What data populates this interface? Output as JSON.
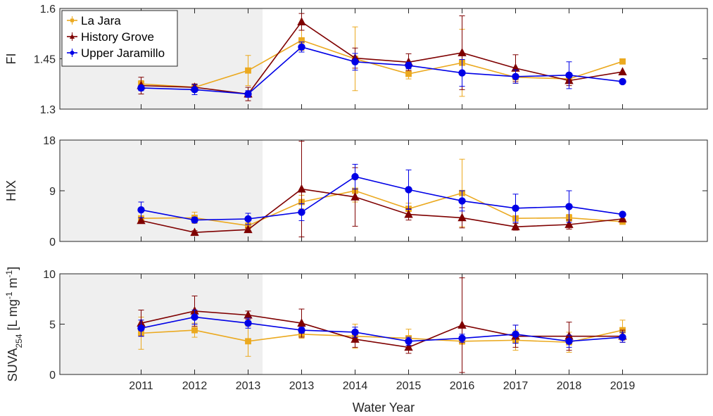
{
  "chart_data": {
    "type": "line",
    "xlabel": "Water Year",
    "categories": [
      "2011",
      "2012",
      "2013",
      "2013",
      "2014",
      "2015",
      "2016",
      "2017",
      "2018",
      "2019"
    ],
    "shaded_region_note": "first three categories shaded gray",
    "colors": {
      "la_jara": "#EBA91F",
      "history_grove": "#7F0000",
      "upper_jaramillo": "#0000E6",
      "shade": "#EFEFEF",
      "axis": "#262626",
      "grid": "#dcdcdc"
    },
    "legend": {
      "placement": "top-left of first panel",
      "entries": [
        "La Jara",
        "History Grove",
        "Upper Jaramillo"
      ]
    },
    "panels": [
      {
        "id": "fi",
        "ylabel": "FI",
        "ylim": [
          1.3,
          1.6
        ],
        "yticks": [
          1.3,
          1.45,
          1.6
        ],
        "ytick_labels": [
          "1.3",
          "1.45",
          "1.6"
        ],
        "series": [
          {
            "name": "La Jara",
            "marker": "square",
            "values": [
              1.375,
              1.365,
              1.415,
              1.505,
              1.45,
              1.405,
              1.438,
              1.395,
              1.39,
              1.442
            ],
            "err": [
              0.01,
              0.008,
              0.045,
              0.03,
              0.095,
              0.015,
              0.1,
              0.018,
              0.012,
              0
            ]
          },
          {
            "name": "History Grove",
            "marker": "triangle",
            "values": [
              1.37,
              1.365,
              1.345,
              1.56,
              1.452,
              1.44,
              1.468,
              1.422,
              1.385,
              1.411
            ],
            "err": [
              0.025,
              0.01,
              0.02,
              0.025,
              0.03,
              0.025,
              0.11,
              0.04,
              0.015,
              0
            ]
          },
          {
            "name": "Upper Jaramillo",
            "marker": "circle",
            "values": [
              1.363,
              1.358,
              1.345,
              1.485,
              1.441,
              1.43,
              1.408,
              1.397,
              1.401,
              1.382
            ],
            "err": [
              0.008,
              0.015,
              0.01,
              0.015,
              0.025,
              0.01,
              0.04,
              0.02,
              0.04,
              0
            ]
          }
        ]
      },
      {
        "id": "hix",
        "ylabel": "HIX",
        "ylim": [
          0,
          18
        ],
        "yticks": [
          0,
          9,
          18
        ],
        "ytick_labels": [
          "0",
          "9",
          "18"
        ],
        "series": [
          {
            "name": "La Jara",
            "marker": "square",
            "values": [
              4.1,
              4.2,
              2.8,
              7.0,
              9.0,
              5.8,
              8.6,
              4.1,
              4.2,
              3.5
            ],
            "err": [
              0.4,
              1.0,
              0.5,
              1.2,
              2.0,
              1.0,
              6.0,
              0.3,
              0.6,
              0
            ]
          },
          {
            "name": "History Grove",
            "marker": "triangle",
            "values": [
              3.7,
              1.6,
              2.1,
              9.3,
              7.9,
              4.8,
              4.2,
              2.6,
              3.0,
              4.0
            ],
            "err": [
              0.5,
              0.3,
              0.3,
              8.5,
              5.2,
              1.0,
              1.8,
              0.6,
              0.8,
              0
            ]
          },
          {
            "name": "Upper Jaramillo",
            "marker": "circle",
            "values": [
              5.6,
              3.8,
              4.0,
              5.2,
              11.5,
              9.2,
              7.2,
              5.9,
              6.2,
              4.8
            ],
            "err": [
              1.4,
              0.5,
              1.0,
              1.5,
              2.2,
              3.5,
              1.8,
              2.5,
              2.8,
              0
            ]
          }
        ]
      },
      {
        "id": "suva",
        "ylabel": "SUVA254 [L mg-1 m-1]",
        "ylabel_parts": {
          "main": "SUVA",
          "sub": "254",
          "unit_open": " [L mg",
          "sup1": "-1",
          "unit_mid": " m",
          "sup2": "-1",
          "unit_close": "]"
        },
        "ylim": [
          0,
          10
        ],
        "yticks": [
          0,
          5,
          10
        ],
        "ytick_labels": [
          "0",
          "5",
          "10"
        ],
        "series": [
          {
            "name": "La Jara",
            "marker": "square",
            "values": [
              4.1,
              4.4,
              3.3,
              4.0,
              3.8,
              3.6,
              3.3,
              3.4,
              3.2,
              4.4
            ],
            "err": [
              1.6,
              0.7,
              1.5,
              0.4,
              1.2,
              0.9,
              0.3,
              1.0,
              1.0,
              1.0
            ]
          },
          {
            "name": "History Grove",
            "marker": "triangle",
            "values": [
              5.1,
              6.3,
              5.9,
              5.1,
              3.5,
              2.7,
              4.9,
              3.8,
              3.8,
              3.8
            ],
            "err": [
              1.3,
              1.5,
              0.4,
              1.4,
              0.8,
              0.6,
              4.7,
              1.1,
              1.4,
              0.6
            ]
          },
          {
            "name": "Upper Jaramillo",
            "marker": "circle",
            "values": [
              4.6,
              5.7,
              5.1,
              4.4,
              4.2,
              3.3,
              3.6,
              4.0,
              3.3,
              3.7
            ],
            "err": [
              0.8,
              0.7,
              0.5,
              0.3,
              0.5,
              0.4,
              0.4,
              0.9,
              0.6,
              0.5
            ]
          }
        ]
      }
    ]
  }
}
